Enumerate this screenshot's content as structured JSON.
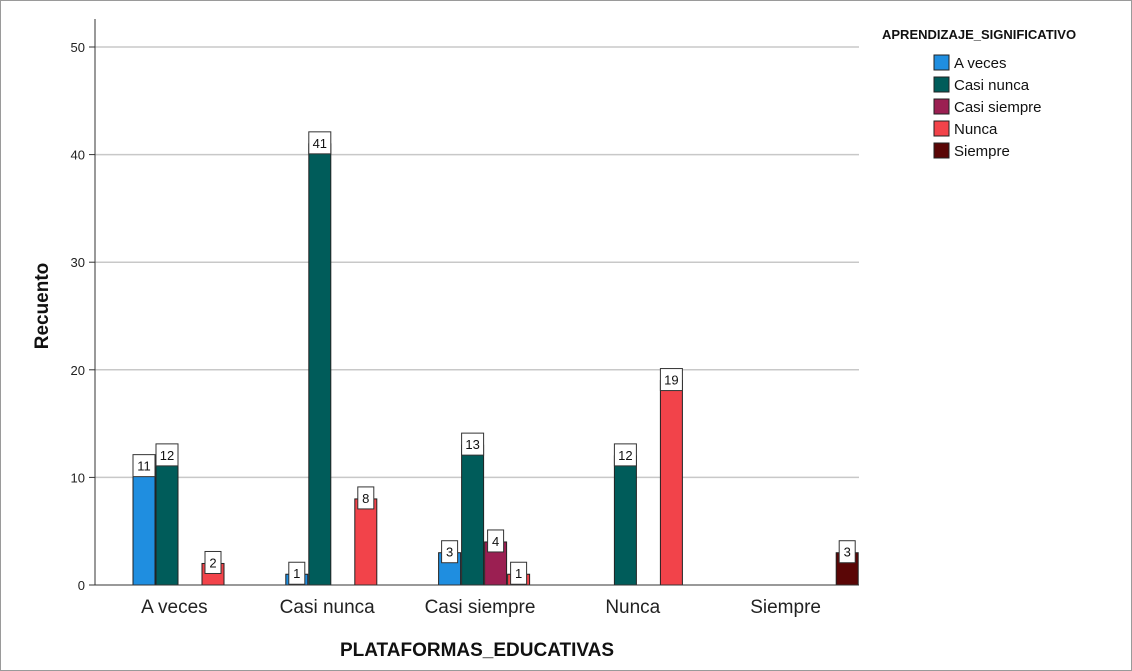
{
  "chart_data": {
    "type": "bar",
    "xlabel": "PLATAFORMAS_EDUCATIVAS",
    "ylabel": "Recuento",
    "ylim": [
      0,
      50
    ],
    "yticks": [
      "0",
      "10",
      "20",
      "30",
      "40",
      "50"
    ],
    "grid": true,
    "legend_title": "APRENDIZAJE_SIGNIFICATIVO",
    "legend_position": "top-right",
    "categories": [
      "A veces",
      "Casi nunca",
      "Casi siempre",
      "Nunca",
      "Siempre"
    ],
    "series": [
      {
        "name": "A veces",
        "color": "#1f8ee0",
        "values": [
          11,
          1,
          3,
          null,
          null
        ]
      },
      {
        "name": "Casi nunca",
        "color": "#005c5a",
        "values": [
          12,
          41,
          13,
          12,
          null
        ]
      },
      {
        "name": "Casi siempre",
        "color": "#9b1f52",
        "values": [
          null,
          null,
          4,
          null,
          null
        ]
      },
      {
        "name": "Nunca",
        "color": "#f2434a",
        "values": [
          2,
          8,
          1,
          19,
          null
        ]
      },
      {
        "name": "Siempre",
        "color": "#5a0606",
        "values": [
          null,
          null,
          null,
          null,
          3
        ]
      }
    ]
  }
}
